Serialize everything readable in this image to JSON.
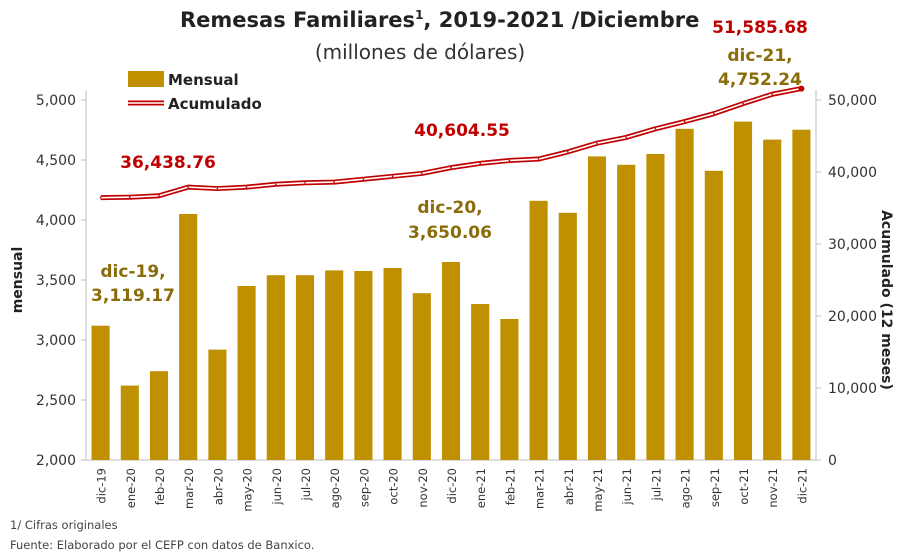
{
  "title": "Remesas Familiares",
  "title_sup": "1",
  "title_rest": ", 2019-2021 /Diciembre",
  "subtitle": "(millones de dólares)",
  "footnotes": [
    "1/ Cifras originales",
    "Fuente: Elaborado por el CEFP con datos de Banxico."
  ],
  "colors": {
    "bar": "#BF9000",
    "line": "#C00000",
    "label_gold": "#8A6D0A",
    "label_red": "#C00000"
  },
  "chart_data": {
    "type": "bar+line",
    "categories": [
      "dic-19",
      "ene-20",
      "feb-20",
      "mar-20",
      "abr-20",
      "may-20",
      "jun-20",
      "jul-20",
      "ago-20",
      "sep-20",
      "oct-20",
      "nov-20",
      "dic-20",
      "ene-21",
      "feb-21",
      "mar-21",
      "abr-21",
      "may-21",
      "jun-21",
      "jul-21",
      "ago-21",
      "sep-21",
      "oct-21",
      "nov-21",
      "dic-21"
    ],
    "series": [
      {
        "name": "Mensual",
        "type": "bar",
        "axis": "left",
        "values": [
          3119.17,
          2620,
          2740,
          4050,
          2920,
          3450,
          3540,
          3540,
          3580,
          3575,
          3600,
          3390,
          3650.06,
          3300,
          3175,
          4160,
          4060,
          4530,
          4460,
          4550,
          4760,
          4410,
          4820,
          4670,
          4752.24
        ]
      },
      {
        "name": "Acumulado",
        "type": "line",
        "axis": "right",
        "values": [
          36438.76,
          36500,
          36700,
          37900,
          37700,
          37900,
          38300,
          38500,
          38600,
          39000,
          39400,
          39800,
          40604.55,
          41200,
          41600,
          41800,
          42800,
          44000,
          44800,
          46000,
          47000,
          48100,
          49500,
          50800,
          51585.68
        ]
      }
    ],
    "ylabel_left": "mensual",
    "ylabel_right": "Acumulado (12 meses)",
    "ylim_left": [
      2000,
      5000
    ],
    "ylim_right": [
      0,
      50000
    ],
    "yticks_left": [
      "2,000",
      "2,500",
      "3,000",
      "3,500",
      "4,000",
      "4,500",
      "5,000"
    ],
    "yticks_right": [
      "0",
      "10,000",
      "20,000",
      "30,000",
      "40,000",
      "50,000"
    ],
    "yticks_left_values": [
      2000,
      2500,
      3000,
      3500,
      4000,
      4500,
      5000
    ],
    "yticks_right_values": [
      0,
      10000,
      20000,
      30000,
      40000,
      50000
    ],
    "legend_position": "top-left",
    "annotations": [
      {
        "text": "dic-19,",
        "text2": "3,119.17",
        "color": "gold",
        "anchor_index": 0,
        "series": "Mensual"
      },
      {
        "text": "dic-20,",
        "text2": "3,650.06",
        "color": "gold",
        "anchor_index": 12,
        "series": "Mensual"
      },
      {
        "text": "dic-21,",
        "text2": "4,752.24",
        "color": "gold",
        "anchor_index": 24,
        "series": "Mensual"
      },
      {
        "text": "36,438.76",
        "color": "red",
        "anchor_index": 0,
        "series": "Acumulado"
      },
      {
        "text": "40,604.55",
        "color": "red",
        "anchor_index": 12,
        "series": "Acumulado"
      },
      {
        "text": "51,585.68",
        "color": "red",
        "anchor_index": 24,
        "series": "Acumulado"
      }
    ],
    "grid": false
  }
}
